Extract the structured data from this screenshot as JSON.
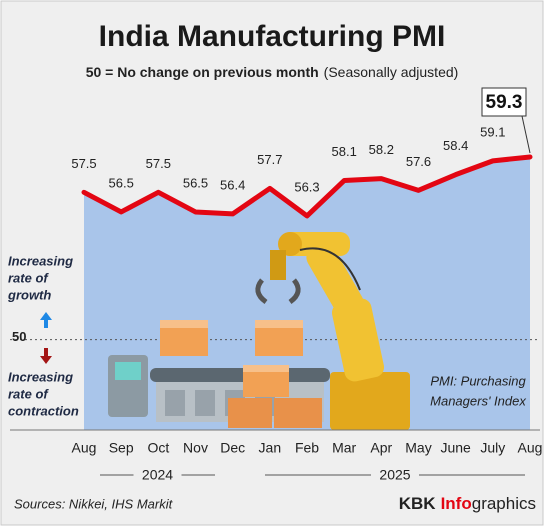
{
  "chart_data": {
    "type": "line",
    "title": "India Manufacturing PMI",
    "subtitle": "50 = No change on previous month",
    "subtitle_note": "(Seasonally adjusted)",
    "categories": [
      "Aug",
      "Sep",
      "Oct",
      "Nov",
      "Dec",
      "Jan",
      "Feb",
      "Mar",
      "Apr",
      "May",
      "June",
      "July",
      "Aug"
    ],
    "values": [
      57.5,
      56.5,
      57.5,
      56.5,
      56.4,
      57.7,
      56.3,
      58.1,
      58.2,
      57.6,
      58.4,
      59.1,
      59.3
    ],
    "color": "#e30613",
    "area_color": "#a9c5ea",
    "ylim": [
      45.4,
      62.2
    ],
    "reference_line": 50,
    "years": [
      "2024",
      "2025"
    ],
    "growth_label": [
      "Increasing",
      "rate of",
      "growth"
    ],
    "contraction_label": [
      "Increasing",
      "rate of",
      "contraction"
    ],
    "note": [
      "PMI: Purchasing",
      "Managers' Index"
    ],
    "source": "Sources: Nikkei, IHS Markit",
    "brand": [
      "KBK",
      "Info",
      "graphics"
    ]
  }
}
